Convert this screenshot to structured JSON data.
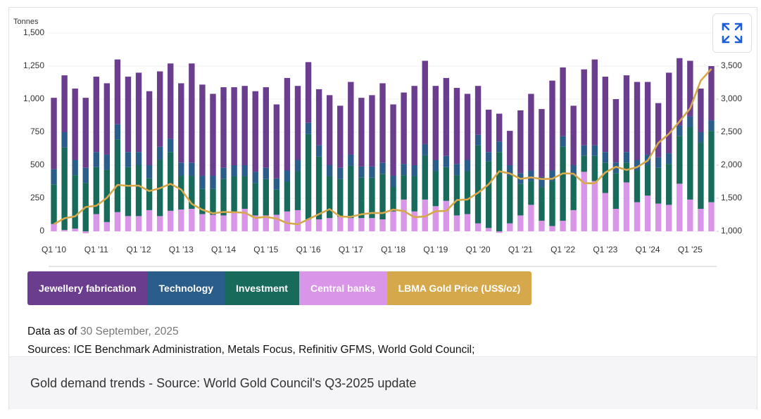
{
  "chart_data": {
    "type": "bar",
    "y_label": "Tonnes",
    "categories": [
      "Q1 '10",
      null,
      null,
      null,
      "Q1 '11",
      null,
      null,
      null,
      "Q1 '12",
      null,
      null,
      null,
      "Q1 '13",
      null,
      null,
      null,
      "Q1 '14",
      null,
      null,
      null,
      "Q1 '15",
      null,
      null,
      null,
      "Q1 '16",
      null,
      null,
      null,
      "Q1 '17",
      null,
      null,
      null,
      "Q1 '18",
      null,
      null,
      null,
      "Q1 '19",
      null,
      null,
      null,
      "Q1 '20",
      null,
      null,
      null,
      "Q1 '21",
      null,
      null,
      null,
      "Q1 '22",
      null,
      null,
      null,
      "Q1 '23",
      null,
      null,
      null,
      "Q1 '24",
      null,
      null,
      null,
      "Q1 '25",
      null,
      null
    ],
    "series": [
      {
        "name": "Jewellery fabrication",
        "color": "#6b3d8e",
        "values": [
          540,
          430,
          540,
          530,
          570,
          540,
          490,
          570,
          600,
          560,
          570,
          570,
          600,
          750,
          690,
          620,
          610,
          590,
          600,
          610,
          610,
          560,
          700,
          560,
          460,
          425,
          530,
          470,
          550,
          520,
          540,
          600,
          540,
          540,
          600,
          630,
          560,
          590,
          575,
          500,
          370,
          320,
          210,
          260,
          475,
          580,
          515,
          680,
          520,
          450,
          575,
          650,
          570,
          480,
          580,
          590,
          550,
          410,
          610,
          510,
          420,
          330,
          410
        ]
      },
      {
        "name": "Technology",
        "color": "#2b5d8a",
        "values": [
          115,
          115,
          115,
          115,
          115,
          115,
          115,
          115,
          100,
          100,
          100,
          100,
          100,
          100,
          100,
          100,
          85,
          85,
          85,
          85,
          85,
          85,
          85,
          85,
          85,
          85,
          85,
          85,
          85,
          85,
          85,
          85,
          85,
          85,
          85,
          85,
          85,
          85,
          85,
          85,
          80,
          70,
          80,
          80,
          80,
          80,
          80,
          80,
          80,
          80,
          80,
          80,
          80,
          80,
          80,
          80,
          80,
          80,
          80,
          80,
          80,
          80,
          80
        ]
      },
      {
        "name": "Investment",
        "color": "#186b5b",
        "values": [
          300,
          625,
          405,
          365,
          355,
          395,
          550,
          370,
          385,
          240,
          425,
          445,
          255,
          250,
          190,
          195,
          275,
          275,
          245,
          245,
          275,
          190,
          225,
          295,
          645,
          475,
          315,
          285,
          395,
          305,
          305,
          345,
          185,
          185,
          265,
          335,
          265,
          255,
          305,
          325,
          590,
          505,
          600,
          360,
          240,
          180,
          250,
          340,
          560,
          260,
          120,
          190,
          230,
          270,
          150,
          240,
          230,
          270,
          310,
          360,
          550,
          500,
          540
        ]
      },
      {
        "name": "Central banks",
        "color": "#d995e8",
        "values": [
          55,
          10,
          20,
          -15,
          130,
          70,
          145,
          115,
          115,
          160,
          115,
          155,
          165,
          170,
          130,
          125,
          120,
          140,
          170,
          120,
          120,
          125,
          150,
          160,
          90,
          90,
          100,
          110,
          100,
          100,
          100,
          90,
          150,
          240,
          150,
          240,
          190,
          230,
          120,
          130,
          60,
          25,
          -12,
          60,
          120,
          200,
          80,
          40,
          80,
          160,
          450,
          380,
          290,
          170,
          370,
          220,
          270,
          210,
          200,
          360,
          240,
          170,
          220
        ]
      },
      {
        "name": "LBMA Gold Price (US$/oz)",
        "color": "#d6a84c",
        "type": "line",
        "axis": "y2",
        "values": [
          1109,
          1197,
          1227,
          1367,
          1386,
          1506,
          1702,
          1688,
          1691,
          1609,
          1652,
          1718,
          1632,
          1415,
          1326,
          1272,
          1293,
          1288,
          1282,
          1201,
          1218,
          1192,
          1124,
          1106,
          1183,
          1260,
          1335,
          1222,
          1219,
          1257,
          1278,
          1275,
          1329,
          1306,
          1213,
          1226,
          1304,
          1309,
          1472,
          1481,
          1583,
          1711,
          1909,
          1874,
          1794,
          1816,
          1790,
          1795,
          1877,
          1871,
          1729,
          1726,
          1890,
          1976,
          1929,
          1971,
          2070,
          2338,
          2474,
          2663,
          2860,
          3280,
          3457
        ]
      }
    ],
    "ylim": [
      0,
      1500
    ],
    "yticks": [
      0,
      250,
      500,
      750,
      {
        "value": 1000,
        "label": "1,000"
      },
      {
        "value": 1250,
        "label": "1,250"
      },
      {
        "value": 1500,
        "label": "1,500"
      }
    ],
    "y2lim": [
      1000,
      4000
    ],
    "y2ticks": [
      {
        "value": 1000,
        "label": "1,000"
      },
      {
        "value": 1500,
        "label": "1,500"
      },
      {
        "value": 2000,
        "label": "2,000"
      },
      {
        "value": 2500,
        "label": "2,500"
      },
      {
        "value": 3000,
        "label": "3,000"
      },
      {
        "value": 3500,
        "label": "3,500"
      }
    ],
    "grid": true
  },
  "note": {
    "prefix": "Data as of",
    "date": "30 September, 2025",
    "sources": "Sources: ICE Benchmark Administration, Metals Focus, Refinitiv GFMS, World Gold Council;"
  },
  "caption": "Gold demand trends - Source: World Gold Council's Q3-2025 update"
}
